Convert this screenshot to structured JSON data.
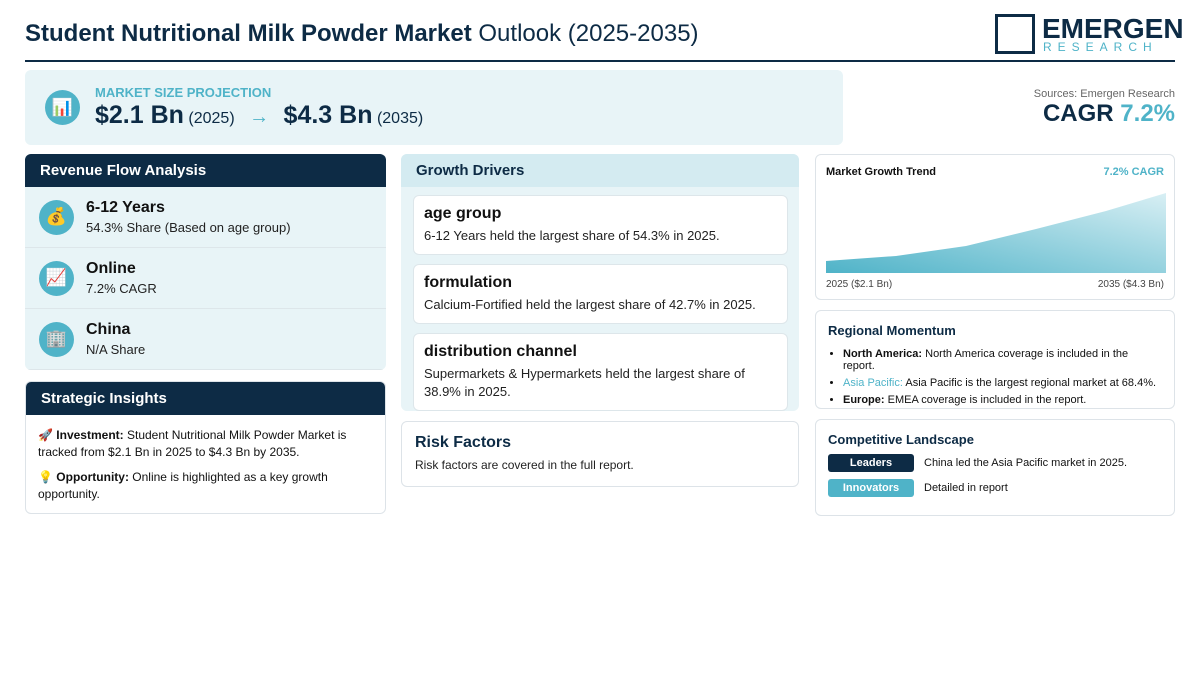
{
  "header": {
    "title_bold": "Student Nutritional Milk Powder Market",
    "title_rest": "Outlook (2025-2035)",
    "logo_main": "EMERGEN",
    "logo_sub": "RESEARCH"
  },
  "projection": {
    "icon": "📊",
    "label": "MARKET SIZE PROJECTION",
    "start_value": "$2.1 Bn",
    "start_year": "(2025)",
    "arrow": "→",
    "end_value": "$4.3 Bn",
    "end_year": "(2035)"
  },
  "sources": {
    "text": "Sources: Emergen Research",
    "cagr_label": "CAGR",
    "cagr_value": "7.2%"
  },
  "revenue_flow": {
    "title": "Revenue Flow Analysis",
    "items": [
      {
        "icon": "💰",
        "title": "6-12 Years",
        "subtitle": "54.3% Share (Based on age group)"
      },
      {
        "icon": "📈",
        "title": "Online",
        "subtitle": "7.2% CAGR"
      },
      {
        "icon": "🏢",
        "title": "China",
        "subtitle": "N/A Share"
      }
    ]
  },
  "strategic_insights": {
    "title": "Strategic Insights",
    "items": [
      {
        "icon": "🚀",
        "label": "Investment:",
        "text": "Student Nutritional Milk Powder Market is tracked from $2.1 Bn in 2025 to $4.3 Bn by 2035."
      },
      {
        "icon": "💡",
        "label": "Opportunity:",
        "text": "Online is highlighted as a key growth opportunity."
      }
    ]
  },
  "growth_drivers": {
    "title": "Growth Drivers",
    "items": [
      {
        "title": "age group",
        "text": "6-12 Years held the largest share of 54.3% in 2025."
      },
      {
        "title": "formulation",
        "text": "Calcium-Fortified held the largest share of 42.7% in 2025."
      },
      {
        "title": "distribution channel",
        "text": "Supermarkets & Hypermarkets held the largest share of 38.9% in 2025."
      }
    ]
  },
  "risk_factors": {
    "title": "Risk Factors",
    "text": "Risk factors are covered in the full report."
  },
  "growth_trend": {
    "title": "Market Growth Trend",
    "badge": "7.2% CAGR",
    "start_label": "2025 ($2.1 Bn)",
    "end_label": "2035 ($4.3 Bn)"
  },
  "regional_momentum": {
    "title": "Regional Momentum",
    "items": [
      {
        "region": "North America:",
        "text": "North America coverage is included in the report."
      },
      {
        "region": "Asia Pacific:",
        "text": "Asia Pacific is the largest regional market at 68.4%."
      },
      {
        "region": "Europe:",
        "text": "EMEA coverage is included in the report."
      }
    ]
  },
  "competitive_landscape": {
    "title": "Competitive Landscape",
    "items": [
      {
        "tag": "Leaders",
        "text": "China led the Asia Pacific market in 2025."
      },
      {
        "tag": "Innovators",
        "text": "Detailed in report"
      }
    ]
  }
}
